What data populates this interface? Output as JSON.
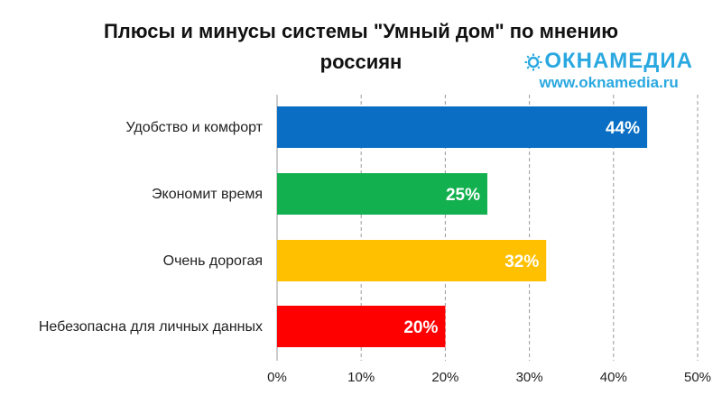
{
  "chart_data": {
    "type": "bar",
    "orientation": "horizontal",
    "title_line1": "Плюсы и минусы системы \"Умный дом\" по мнению",
    "title_line2": "россиян",
    "categories": [
      "Удобство и комфорт",
      "Экономит время",
      "Очень дорогая",
      "Небезопасна для личных данных"
    ],
    "values": [
      44,
      25,
      32,
      20
    ],
    "value_labels": [
      "44%",
      "25%",
      "32%",
      "20%"
    ],
    "colors": [
      "#0a6fc4",
      "#13b04f",
      "#ffc000",
      "#ff0000"
    ],
    "xlim": [
      0,
      50
    ],
    "ticks": [
      0,
      10,
      20,
      30,
      40,
      50
    ],
    "tick_labels": [
      "0%",
      "10%",
      "20%",
      "30%",
      "40%",
      "50%"
    ],
    "grid": "dashed vertical",
    "xlabel": "",
    "ylabel": ""
  },
  "watermark": {
    "brand": "ОКНАМЕДИА",
    "url": "www.oknamedia.ru",
    "color": "#2aa8e0"
  }
}
